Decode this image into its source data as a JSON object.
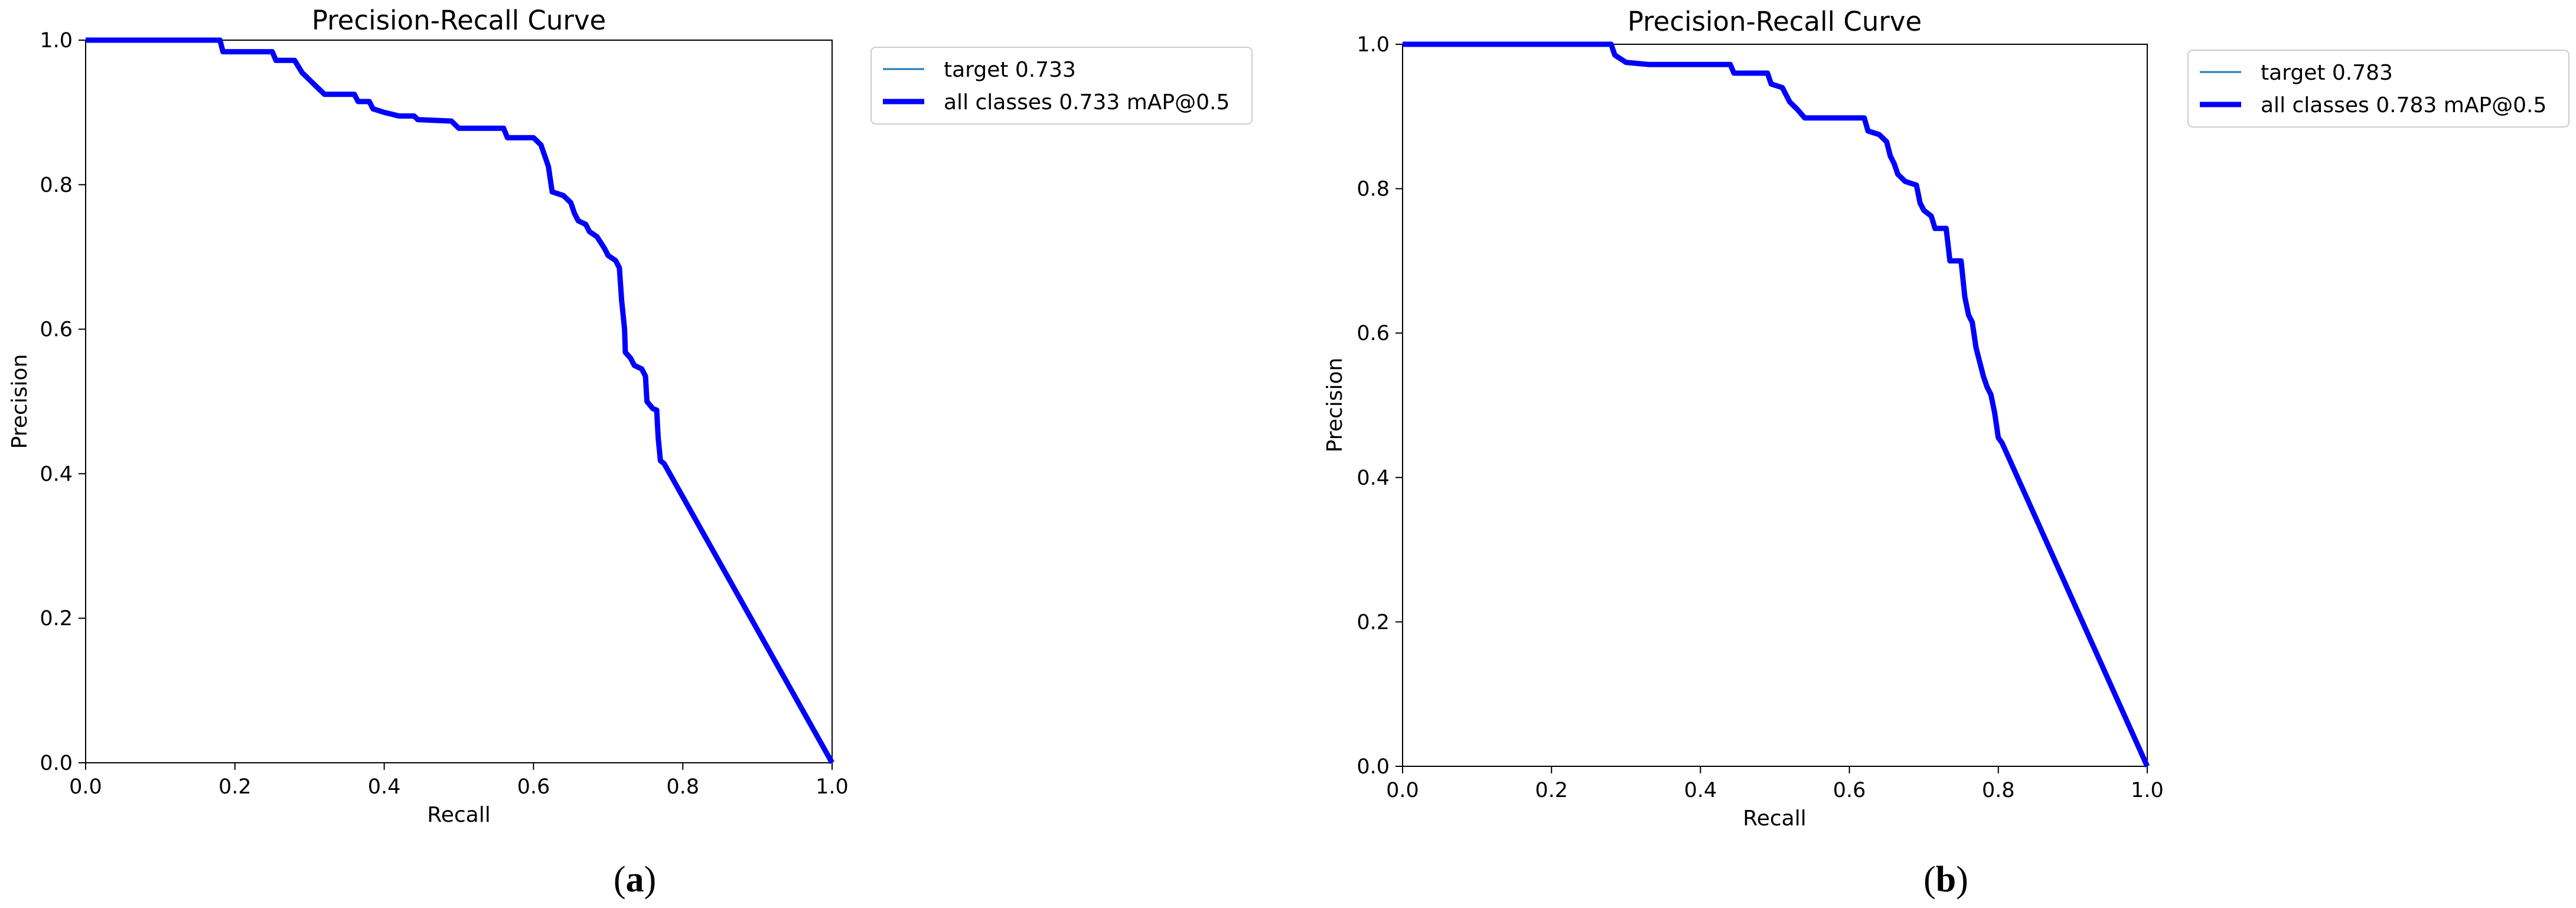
{
  "chart_data": [
    {
      "type": "line",
      "title": "Precision-Recall Curve",
      "xlabel": "Recall",
      "ylabel": "Precision",
      "xlim": [
        0,
        1
      ],
      "ylim": [
        0,
        1
      ],
      "x_ticks": [
        "0.0",
        "0.2",
        "0.4",
        "0.6",
        "0.8",
        "1.0"
      ],
      "y_ticks": [
        "0.0",
        "0.2",
        "0.4",
        "0.6",
        "0.8",
        "1.0"
      ],
      "grid": false,
      "legend_position": "outside-top-right",
      "caption_letter": "a",
      "series": [
        {
          "name": "target 0.733",
          "color": "#1f77b4",
          "points": [
            [
              0,
              1.0
            ],
            [
              0.18,
              1.0
            ],
            [
              0.184,
              0.984
            ],
            [
              0.25,
              0.984
            ],
            [
              0.255,
              0.972
            ],
            [
              0.28,
              0.972
            ],
            [
              0.29,
              0.955
            ],
            [
              0.3,
              0.945
            ],
            [
              0.31,
              0.935
            ],
            [
              0.32,
              0.925
            ],
            [
              0.36,
              0.925
            ],
            [
              0.365,
              0.915
            ],
            [
              0.38,
              0.915
            ],
            [
              0.385,
              0.905
            ],
            [
              0.4,
              0.9
            ],
            [
              0.42,
              0.895
            ],
            [
              0.44,
              0.895
            ],
            [
              0.445,
              0.89
            ],
            [
              0.49,
              0.888
            ],
            [
              0.5,
              0.878
            ],
            [
              0.56,
              0.878
            ],
            [
              0.565,
              0.865
            ],
            [
              0.6,
              0.865
            ],
            [
              0.61,
              0.855
            ],
            [
              0.615,
              0.84
            ],
            [
              0.62,
              0.825
            ],
            [
              0.625,
              0.79
            ],
            [
              0.64,
              0.785
            ],
            [
              0.65,
              0.775
            ],
            [
              0.655,
              0.76
            ],
            [
              0.66,
              0.75
            ],
            [
              0.67,
              0.745
            ],
            [
              0.675,
              0.735
            ],
            [
              0.685,
              0.728
            ],
            [
              0.695,
              0.712
            ],
            [
              0.7,
              0.702
            ],
            [
              0.71,
              0.695
            ],
            [
              0.715,
              0.685
            ],
            [
              0.718,
              0.64
            ],
            [
              0.722,
              0.6
            ],
            [
              0.723,
              0.568
            ],
            [
              0.73,
              0.56
            ],
            [
              0.735,
              0.55
            ],
            [
              0.745,
              0.545
            ],
            [
              0.75,
              0.535
            ],
            [
              0.752,
              0.5
            ],
            [
              0.76,
              0.49
            ],
            [
              0.765,
              0.488
            ],
            [
              0.767,
              0.45
            ],
            [
              0.77,
              0.418
            ],
            [
              0.775,
              0.414
            ],
            [
              1.0,
              0.0
            ]
          ]
        },
        {
          "name": "all classes 0.733 mAP@0.5",
          "color": "#0000ff",
          "points": [
            [
              0,
              1.0
            ],
            [
              0.18,
              1.0
            ],
            [
              0.184,
              0.984
            ],
            [
              0.25,
              0.984
            ],
            [
              0.255,
              0.972
            ],
            [
              0.28,
              0.972
            ],
            [
              0.29,
              0.955
            ],
            [
              0.3,
              0.945
            ],
            [
              0.31,
              0.935
            ],
            [
              0.32,
              0.925
            ],
            [
              0.36,
              0.925
            ],
            [
              0.365,
              0.915
            ],
            [
              0.38,
              0.915
            ],
            [
              0.385,
              0.905
            ],
            [
              0.4,
              0.9
            ],
            [
              0.42,
              0.895
            ],
            [
              0.44,
              0.895
            ],
            [
              0.445,
              0.89
            ],
            [
              0.49,
              0.888
            ],
            [
              0.5,
              0.878
            ],
            [
              0.56,
              0.878
            ],
            [
              0.565,
              0.865
            ],
            [
              0.6,
              0.865
            ],
            [
              0.61,
              0.855
            ],
            [
              0.615,
              0.84
            ],
            [
              0.62,
              0.825
            ],
            [
              0.625,
              0.79
            ],
            [
              0.64,
              0.785
            ],
            [
              0.65,
              0.775
            ],
            [
              0.655,
              0.76
            ],
            [
              0.66,
              0.75
            ],
            [
              0.67,
              0.745
            ],
            [
              0.675,
              0.735
            ],
            [
              0.685,
              0.728
            ],
            [
              0.695,
              0.712
            ],
            [
              0.7,
              0.702
            ],
            [
              0.71,
              0.695
            ],
            [
              0.715,
              0.685
            ],
            [
              0.718,
              0.64
            ],
            [
              0.722,
              0.6
            ],
            [
              0.723,
              0.568
            ],
            [
              0.73,
              0.56
            ],
            [
              0.735,
              0.55
            ],
            [
              0.745,
              0.545
            ],
            [
              0.75,
              0.535
            ],
            [
              0.752,
              0.5
            ],
            [
              0.76,
              0.49
            ],
            [
              0.765,
              0.488
            ],
            [
              0.767,
              0.45
            ],
            [
              0.77,
              0.418
            ],
            [
              0.775,
              0.414
            ],
            [
              1.0,
              0.0
            ]
          ]
        }
      ]
    },
    {
      "type": "line",
      "title": "Precision-Recall Curve",
      "xlabel": "Recall",
      "ylabel": "Precision",
      "xlim": [
        0,
        1
      ],
      "ylim": [
        0,
        1
      ],
      "x_ticks": [
        "0.0",
        "0.2",
        "0.4",
        "0.6",
        "0.8",
        "1.0"
      ],
      "y_ticks": [
        "0.0",
        "0.2",
        "0.4",
        "0.6",
        "0.8",
        "1.0"
      ],
      "grid": false,
      "legend_position": "outside-top-right",
      "caption_letter": "b",
      "series": [
        {
          "name": "target 0.783",
          "color": "#1f77b4",
          "points": [
            [
              0,
              1.0
            ],
            [
              0.28,
              1.0
            ],
            [
              0.285,
              0.985
            ],
            [
              0.3,
              0.975
            ],
            [
              0.33,
              0.972
            ],
            [
              0.44,
              0.972
            ],
            [
              0.445,
              0.96
            ],
            [
              0.49,
              0.96
            ],
            [
              0.495,
              0.945
            ],
            [
              0.51,
              0.94
            ],
            [
              0.52,
              0.92
            ],
            [
              0.53,
              0.91
            ],
            [
              0.54,
              0.898
            ],
            [
              0.62,
              0.898
            ],
            [
              0.625,
              0.88
            ],
            [
              0.64,
              0.875
            ],
            [
              0.65,
              0.865
            ],
            [
              0.655,
              0.845
            ],
            [
              0.66,
              0.835
            ],
            [
              0.665,
              0.82
            ],
            [
              0.675,
              0.81
            ],
            [
              0.69,
              0.805
            ],
            [
              0.695,
              0.78
            ],
            [
              0.7,
              0.77
            ],
            [
              0.71,
              0.762
            ],
            [
              0.715,
              0.745
            ],
            [
              0.73,
              0.745
            ],
            [
              0.735,
              0.7
            ],
            [
              0.75,
              0.7
            ],
            [
              0.752,
              0.68
            ],
            [
              0.755,
              0.65
            ],
            [
              0.76,
              0.625
            ],
            [
              0.765,
              0.615
            ],
            [
              0.77,
              0.58
            ],
            [
              0.775,
              0.56
            ],
            [
              0.78,
              0.54
            ],
            [
              0.785,
              0.525
            ],
            [
              0.79,
              0.515
            ],
            [
              0.795,
              0.49
            ],
            [
              0.8,
              0.455
            ],
            [
              0.805,
              0.448
            ],
            [
              1.0,
              0.0
            ]
          ]
        },
        {
          "name": "all classes 0.783 mAP@0.5",
          "color": "#0000ff",
          "points": [
            [
              0,
              1.0
            ],
            [
              0.28,
              1.0
            ],
            [
              0.285,
              0.985
            ],
            [
              0.3,
              0.975
            ],
            [
              0.33,
              0.972
            ],
            [
              0.44,
              0.972
            ],
            [
              0.445,
              0.96
            ],
            [
              0.49,
              0.96
            ],
            [
              0.495,
              0.945
            ],
            [
              0.51,
              0.94
            ],
            [
              0.52,
              0.92
            ],
            [
              0.53,
              0.91
            ],
            [
              0.54,
              0.898
            ],
            [
              0.62,
              0.898
            ],
            [
              0.625,
              0.88
            ],
            [
              0.64,
              0.875
            ],
            [
              0.65,
              0.865
            ],
            [
              0.655,
              0.845
            ],
            [
              0.66,
              0.835
            ],
            [
              0.665,
              0.82
            ],
            [
              0.675,
              0.81
            ],
            [
              0.69,
              0.805
            ],
            [
              0.695,
              0.78
            ],
            [
              0.7,
              0.77
            ],
            [
              0.71,
              0.762
            ],
            [
              0.715,
              0.745
            ],
            [
              0.73,
              0.745
            ],
            [
              0.735,
              0.7
            ],
            [
              0.75,
              0.7
            ],
            [
              0.752,
              0.68
            ],
            [
              0.755,
              0.65
            ],
            [
              0.76,
              0.625
            ],
            [
              0.765,
              0.615
            ],
            [
              0.77,
              0.58
            ],
            [
              0.775,
              0.56
            ],
            [
              0.78,
              0.54
            ],
            [
              0.785,
              0.525
            ],
            [
              0.79,
              0.515
            ],
            [
              0.795,
              0.49
            ],
            [
              0.8,
              0.455
            ],
            [
              0.805,
              0.448
            ],
            [
              1.0,
              0.0
            ]
          ]
        }
      ]
    }
  ]
}
